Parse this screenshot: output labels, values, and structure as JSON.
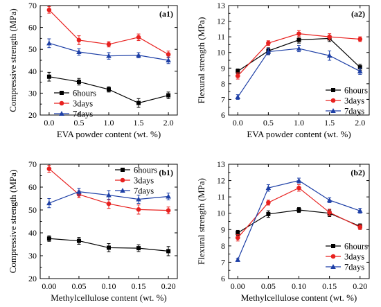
{
  "chart_data": [
    {
      "type": "line",
      "panel": "(a1)",
      "xlabel": "EVA powder content (wt. %)",
      "ylabel": "Compressive strength (MPa)",
      "x": [
        0.0,
        0.5,
        1.0,
        1.5,
        2.0
      ],
      "x_tick_labels": [
        "0.0",
        "0.5",
        "1.0",
        "1.5",
        "2.0"
      ],
      "xlim": [
        -0.15,
        2.15
      ],
      "ylim": [
        20,
        70
      ],
      "y_ticks": [
        20,
        30,
        40,
        50,
        60,
        70
      ],
      "legend_position": "bottom-left",
      "series": [
        {
          "name": "6hours",
          "color": "#000000",
          "marker": "square",
          "values": [
            37.5,
            35.2,
            31.7,
            25.5,
            29.0
          ],
          "errors": [
            2.0,
            1.5,
            1.2,
            2.0,
            1.5
          ]
        },
        {
          "name": "3days",
          "color": "#e8211f",
          "marker": "circle",
          "values": [
            68.0,
            54.2,
            52.3,
            55.5,
            47.7
          ],
          "errors": [
            1.5,
            2.0,
            1.2,
            1.5,
            1.5
          ]
        },
        {
          "name": "7days",
          "color": "#1d3fa6",
          "marker": "triangle",
          "values": [
            52.8,
            48.8,
            47.0,
            47.3,
            45.0
          ],
          "errors": [
            2.0,
            1.5,
            1.5,
            1.2,
            1.5
          ]
        }
      ]
    },
    {
      "type": "line",
      "panel": "(a2)",
      "xlabel": "EVA powder content (wt. %)",
      "ylabel": "Flexural strength (MPa)",
      "x": [
        0.0,
        0.5,
        1.0,
        1.5,
        2.0
      ],
      "x_tick_labels": [
        "0.0",
        "0.5",
        "1.0",
        "1.5",
        "2.0"
      ],
      "xlim": [
        -0.15,
        2.15
      ],
      "ylim": [
        6,
        13
      ],
      "y_ticks": [
        6,
        7,
        8,
        9,
        10,
        11,
        12,
        13
      ],
      "legend_position": "bottom-right",
      "series": [
        {
          "name": "6hours",
          "color": "#000000",
          "marker": "square",
          "values": [
            8.8,
            10.1,
            10.8,
            10.9,
            9.05
          ],
          "errors": [
            0.15,
            0.2,
            0.2,
            0.2,
            0.2
          ]
        },
        {
          "name": "3days",
          "color": "#e8211f",
          "marker": "circle",
          "values": [
            8.5,
            10.6,
            11.2,
            11.0,
            10.85
          ],
          "errors": [
            0.2,
            0.15,
            0.2,
            0.2,
            0.15
          ]
        },
        {
          "name": "7days",
          "color": "#1d3fa6",
          "marker": "triangle",
          "values": [
            7.15,
            10.05,
            10.25,
            9.8,
            8.8
          ],
          "errors": [
            0.15,
            0.2,
            0.2,
            0.3,
            0.2
          ]
        }
      ]
    },
    {
      "type": "line",
      "panel": "(b1)",
      "xlabel": "Methylcellulose content (wt. %)",
      "ylabel": "Compressive strength (MPa)",
      "x": [
        0.0,
        0.05,
        0.1,
        0.15,
        0.2
      ],
      "x_tick_labels": [
        "0.00",
        "0.05",
        "0.10",
        "0.15",
        "0.20"
      ],
      "xlim": [
        -0.015,
        0.215
      ],
      "ylim": [
        20,
        70
      ],
      "y_ticks": [
        20,
        30,
        40,
        50,
        60,
        70
      ],
      "legend_position": "top-right",
      "series": [
        {
          "name": "6hours",
          "color": "#000000",
          "marker": "square",
          "values": [
            37.5,
            36.5,
            33.5,
            33.3,
            32.0
          ],
          "errors": [
            1.2,
            1.5,
            1.8,
            1.5,
            2.0
          ]
        },
        {
          "name": "3days",
          "color": "#e8211f",
          "marker": "circle",
          "values": [
            68.0,
            56.8,
            52.7,
            50.2,
            49.8
          ],
          "errors": [
            1.5,
            1.5,
            2.0,
            2.0,
            1.5
          ]
        },
        {
          "name": "7days",
          "color": "#1d3fa6",
          "marker": "triangle",
          "values": [
            53.0,
            58.0,
            56.5,
            54.7,
            55.9
          ],
          "errors": [
            2.0,
            1.5,
            2.0,
            1.8,
            1.5
          ]
        }
      ]
    },
    {
      "type": "line",
      "panel": "(b2)",
      "xlabel": "Methylcellulose content (wt. %)",
      "ylabel": "Flexural strength (MPa)",
      "x": [
        0.0,
        0.05,
        0.1,
        0.15,
        0.2
      ],
      "x_tick_labels": [
        "0.00",
        "0.05",
        "0.10",
        "0.15",
        "0.20"
      ],
      "xlim": [
        -0.015,
        0.215
      ],
      "ylim": [
        6,
        13
      ],
      "y_ticks": [
        6,
        7,
        8,
        9,
        10,
        11,
        12,
        13
      ],
      "legend_position": "bottom-right",
      "series": [
        {
          "name": "6hours",
          "color": "#000000",
          "marker": "square",
          "values": [
            8.8,
            9.95,
            10.2,
            10.0,
            9.2
          ],
          "errors": [
            0.15,
            0.2,
            0.15,
            0.2,
            0.15
          ]
        },
        {
          "name": "3days",
          "color": "#e8211f",
          "marker": "circle",
          "values": [
            8.5,
            10.65,
            11.55,
            10.05,
            9.15
          ],
          "errors": [
            0.2,
            0.15,
            0.2,
            0.2,
            0.15
          ]
        },
        {
          "name": "7days",
          "color": "#1d3fa6",
          "marker": "triangle",
          "values": [
            7.15,
            11.55,
            12.0,
            10.8,
            10.15
          ],
          "errors": [
            0.1,
            0.2,
            0.15,
            0.15,
            0.15
          ]
        }
      ]
    }
  ]
}
